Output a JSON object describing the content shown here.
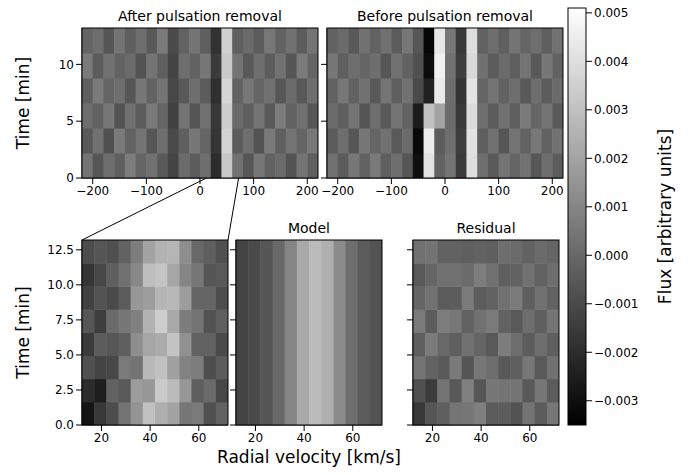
{
  "x_label": "Radial velocity [km/s]",
  "colorbar": {
    "label": "Flux [arbitrary units]",
    "range": [
      -0.0035,
      0.0051
    ],
    "ticks": [
      {
        "value": -0.003,
        "label": "−0.003"
      },
      {
        "value": -0.002,
        "label": "−0.002"
      },
      {
        "value": -0.001,
        "label": "−0.001"
      },
      {
        "value": 0,
        "label": "0.000"
      },
      0.001,
      0.002,
      0.003,
      0.004,
      0.005
    ]
  },
  "chart_data": [
    {
      "type": "heatmap",
      "title": "After pulsation removal",
      "y_label": "Time [min]",
      "xlim": [
        -220,
        220
      ],
      "xticks": [
        {
          "value": -200,
          "label": "−200"
        },
        {
          "value": -100,
          "label": "−100"
        },
        0,
        100,
        200
      ],
      "ylim": [
        0,
        13.2
      ],
      "yticks": [
        0,
        5,
        10
      ],
      "x": [
        -210,
        -190,
        -170,
        -150,
        -130,
        -110,
        -90,
        -70,
        -50,
        -30,
        -10,
        10,
        30,
        50,
        70,
        90,
        110,
        130,
        150,
        170,
        190,
        210
      ],
      "y": [
        1.1,
        3.3,
        5.5,
        7.7,
        9.9,
        12.1
      ],
      "cells": [
        [
          0.0004,
          -0.0006,
          0.0002,
          -0.0003,
          0.0007,
          -0.0001,
          0.0003,
          -0.0005,
          -0.0012,
          0.0001,
          -0.0004,
          0.0002,
          -0.002,
          0.0032,
          0.0003,
          -0.0006,
          0.0005,
          -0.0002,
          0.0001,
          -0.0007,
          0.0004,
          -0.0003
        ],
        [
          -0.0005,
          0.0003,
          -0.0008,
          0.0006,
          -0.0002,
          0.0004,
          -0.0006,
          0.0002,
          -0.001,
          -0.0003,
          0.0005,
          -0.0001,
          -0.0017,
          0.0036,
          -0.0004,
          0.0002,
          -0.0007,
          0.0006,
          -0.0003,
          0.0004,
          -0.0001,
          0.0005
        ],
        [
          0.0002,
          -0.0002,
          0.0005,
          -0.0007,
          0.0003,
          -0.0004,
          0.0006,
          -0.0001,
          -0.0013,
          0.0004,
          -0.0006,
          0.0003,
          -0.0016,
          0.0034,
          0.0001,
          -0.0003,
          0.0004,
          -0.0005,
          0.0007,
          -0.0002,
          0.0003,
          -0.0006
        ],
        [
          -0.0003,
          0.0006,
          -0.0001,
          0.0002,
          -0.0006,
          0.0005,
          -0.0002,
          0.0004,
          -0.0011,
          -0.0005,
          0.0002,
          -0.0004,
          -0.0019,
          0.0037,
          -0.0002,
          0.0005,
          -0.0001,
          0.0003,
          -0.0006,
          0.0001,
          -0.0005,
          0.0002
        ],
        [
          0.0006,
          -0.0004,
          0.0003,
          -0.0002,
          0.0001,
          -0.0007,
          0.0004,
          -0.0003,
          -0.0012,
          0.0002,
          -0.0002,
          0.0005,
          -0.0015,
          0.0033,
          0.0004,
          -0.0005,
          0.0002,
          -0.0004,
          0.0003,
          -0.0006,
          0.0006,
          -0.0001
        ],
        [
          -0.0001,
          0.0002,
          -0.0006,
          0.0004,
          -0.0003,
          0.0002,
          -0.0005,
          0.0006,
          -0.001,
          -0.0002,
          0.0004,
          -0.0003,
          -0.0018,
          0.0035,
          -0.0003,
          0.0001,
          -0.0004,
          0.0005,
          -0.0002,
          0.0003,
          -0.0004,
          0.0004
        ]
      ]
    },
    {
      "type": "heatmap",
      "title": "Before pulsation removal",
      "tick_labels": "x",
      "xlim": [
        -220,
        220
      ],
      "xticks": [
        {
          "value": -200,
          "label": "−200"
        },
        {
          "value": -100,
          "label": "−100"
        },
        0,
        100,
        200
      ],
      "ylim": [
        0,
        13.2
      ],
      "yticks": [
        0,
        5,
        10
      ],
      "x": [
        -210,
        -190,
        -170,
        -150,
        -130,
        -110,
        -90,
        -70,
        -50,
        -30,
        -10,
        10,
        30,
        50,
        70,
        90,
        110,
        130,
        150,
        170,
        190,
        210
      ],
      "y": [
        1.1,
        3.3,
        5.5,
        7.7,
        9.9,
        12.1
      ],
      "cells": [
        [
          0.0003,
          -0.0004,
          0.0005,
          -0.0002,
          0.0006,
          -0.0003,
          0.0002,
          -0.0006,
          -0.003,
          0.0042,
          -0.0002,
          0.0004,
          -0.0015,
          0.004,
          0.0002,
          -0.0005,
          0.0004,
          -0.0001,
          0.0003,
          -0.0006,
          0.0002,
          -0.0004
        ],
        [
          -0.0004,
          0.0002,
          -0.0006,
          0.0005,
          -0.0001,
          0.0003,
          -0.0005,
          0.0001,
          -0.0032,
          0.0045,
          -0.0004,
          0.0002,
          -0.0014,
          0.0041,
          -0.0003,
          0.0003,
          -0.0006,
          0.0004,
          -0.0002,
          0.0005,
          -0.0002,
          0.0003
        ],
        [
          0.0001,
          -0.0003,
          0.0004,
          -0.0006,
          0.0002,
          -0.0005,
          0.0004,
          -0.0002,
          -0.0026,
          0.003,
          0.002,
          0.0001,
          -0.0016,
          0.0039,
          0.0002,
          -0.0004,
          0.0003,
          -0.0003,
          0.0006,
          -0.0001,
          0.0004,
          -0.0005
        ],
        [
          -0.0002,
          0.0005,
          -0.0002,
          0.0003,
          -0.0005,
          0.0004,
          -0.0003,
          0.0003,
          -0.001,
          -0.0024,
          0.0044,
          0.0002,
          -0.0017,
          0.0042,
          -0.0001,
          0.0004,
          -0.0002,
          0.0002,
          -0.0005,
          0.0002,
          -0.0004,
          0.0001
        ],
        [
          0.0005,
          -0.0003,
          0.0002,
          -0.0001,
          0.0002,
          -0.0006,
          0.0003,
          -0.0002,
          -0.0008,
          -0.0031,
          0.0046,
          0.0003,
          -0.0014,
          0.0038,
          0.0003,
          -0.0004,
          0.0001,
          -0.0003,
          0.0004,
          -0.0005,
          0.0005,
          -0.0002
        ],
        [
          -0.0002,
          0.0001,
          -0.0005,
          0.0003,
          -0.0002,
          0.0003,
          -0.0004,
          0.0005,
          -0.0006,
          -0.0033,
          0.0043,
          0.0005,
          -0.0016,
          0.004,
          -0.0002,
          0.0002,
          -0.0003,
          0.0004,
          -0.0001,
          0.0002,
          -0.0003,
          0.0003
        ]
      ]
    },
    {
      "type": "heatmap",
      "y_label": "Time [min]",
      "xlim": [
        12,
        72
      ],
      "xticks": [
        20,
        40,
        60
      ],
      "ylim": [
        0,
        13.2
      ],
      "yticks": [
        {
          "value": 0,
          "label": "0.0"
        },
        2.5,
        {
          "value": 5,
          "label": "5.0"
        },
        7.5,
        {
          "value": 10,
          "label": "10.0"
        },
        12.5
      ],
      "x": [
        14.5,
        19.5,
        24.5,
        29.5,
        34.5,
        39.5,
        44.5,
        49.5,
        54.5,
        59.5,
        64.5,
        69.5
      ],
      "y": [
        0.825,
        2.475,
        4.125,
        5.775,
        7.425,
        9.075,
        10.725,
        12.375
      ],
      "cells": [
        [
          -0.0028,
          -0.0016,
          -0.0009,
          0.0004,
          0.0015,
          0.003,
          0.0024,
          0.002,
          0.0005,
          0.0006,
          -0.0008,
          -0.0002
        ],
        [
          -0.002,
          -0.0025,
          -0.0002,
          -0.0005,
          0.0018,
          0.0016,
          0.0033,
          0.0028,
          0.0016,
          -0.0003,
          0.0001,
          -0.0011
        ],
        [
          -0.0008,
          -0.0012,
          -0.0011,
          0.0006,
          0.0004,
          0.0027,
          0.003,
          0.0019,
          0.0009,
          0.0007,
          -0.0009,
          -0.0004
        ],
        [
          -0.0015,
          -0.0004,
          -0.0006,
          -0.0003,
          0.0013,
          0.0021,
          0.0023,
          0.0031,
          0.0014,
          -0.0002,
          -0.0002,
          -0.001
        ],
        [
          -0.0006,
          -0.0014,
          0.0001,
          0.0005,
          0.0008,
          0.0025,
          0.0034,
          0.0022,
          0.0007,
          0.0004,
          -0.0007,
          -0.0003
        ],
        [
          -0.0013,
          -0.0007,
          -0.001,
          -0.0004,
          0.0016,
          0.0018,
          0.0026,
          0.0027,
          0.0018,
          -0.0001,
          -0.0001,
          -0.0009
        ],
        [
          -0.0017,
          -0.0011,
          -0.0003,
          0.0003,
          0.0011,
          0.0029,
          0.0031,
          0.0021,
          0.001,
          0.0005,
          -0.0006,
          -0.0005
        ],
        [
          -0.0009,
          -0.0006,
          -0.0008,
          -0.0002,
          0.0007,
          0.002,
          0.0025,
          0.0026,
          0.0013,
          0.0,
          -0.0003,
          -0.0008
        ]
      ]
    },
    {
      "type": "heatmap",
      "title": "Model",
      "tick_labels": "x",
      "xlim": [
        12,
        72
      ],
      "xticks": [
        20,
        40,
        60
      ],
      "ylim": [
        0,
        13.2
      ],
      "yticks": [
        0,
        2.5,
        5,
        7.5,
        10,
        12.5
      ],
      "x": [
        14.5,
        19.5,
        24.5,
        29.5,
        34.5,
        39.5,
        44.5,
        49.5,
        54.5,
        59.5,
        64.5,
        69.5
      ],
      "y": [
        6.6
      ],
      "cells": [
        [
          -0.0012,
          -0.001,
          -0.0006,
          0.0,
          0.001,
          0.0022,
          0.0028,
          0.0024,
          0.0012,
          0.0002,
          -0.0004,
          -0.0007
        ]
      ]
    },
    {
      "type": "heatmap",
      "title": "Residual",
      "tick_labels": "x",
      "xlim": [
        12,
        72
      ],
      "xticks": [
        20,
        40,
        60
      ],
      "ylim": [
        0,
        13.2
      ],
      "yticks": [
        0,
        2.5,
        5,
        7.5,
        10,
        12.5
      ],
      "x": [
        14.5,
        19.5,
        24.5,
        29.5,
        34.5,
        39.5,
        44.5,
        49.5,
        54.5,
        59.5,
        64.5,
        69.5
      ],
      "y": [
        0.825,
        2.475,
        4.125,
        5.775,
        7.425,
        9.075,
        10.725,
        12.375
      ],
      "cells": [
        [
          -0.0016,
          -0.0006,
          -0.0003,
          0.0004,
          0.0005,
          0.0008,
          -0.0004,
          -0.0004,
          -0.0007,
          0.0004,
          -0.0004,
          0.0005
        ],
        [
          -0.0008,
          -0.0015,
          0.0004,
          -0.0005,
          0.0008,
          -0.0006,
          0.0005,
          0.0004,
          0.0004,
          -0.0005,
          0.0005,
          -0.0004
        ],
        [
          0.0004,
          -0.0002,
          -0.0005,
          0.0006,
          -0.0006,
          0.0005,
          0.0002,
          -0.0005,
          -0.0003,
          0.0005,
          -0.0005,
          0.0003
        ],
        [
          -0.0003,
          0.0006,
          0.0,
          -0.0003,
          0.0003,
          -0.0001,
          -0.0005,
          0.0007,
          0.0002,
          -0.0004,
          0.0002,
          -0.0003
        ],
        [
          0.0006,
          -0.0004,
          0.0007,
          0.0005,
          -0.0002,
          0.0003,
          0.0006,
          -0.0002,
          -0.0005,
          0.0002,
          -0.0003,
          0.0004
        ],
        [
          -0.0001,
          0.0003,
          -0.0004,
          -0.0004,
          0.0006,
          -0.0004,
          -0.0002,
          0.0003,
          0.0006,
          -0.0003,
          0.0003,
          -0.0002
        ],
        [
          -0.0005,
          -0.0001,
          0.0003,
          0.0003,
          0.0001,
          0.0007,
          0.0003,
          -0.0003,
          -0.0002,
          0.0003,
          -0.0002,
          0.0002
        ],
        [
          0.0003,
          0.0004,
          -0.0002,
          -0.0002,
          -0.0003,
          -0.0002,
          -0.0003,
          0.0002,
          0.0001,
          -0.0002,
          0.0001,
          -0.0001
        ]
      ]
    }
  ]
}
